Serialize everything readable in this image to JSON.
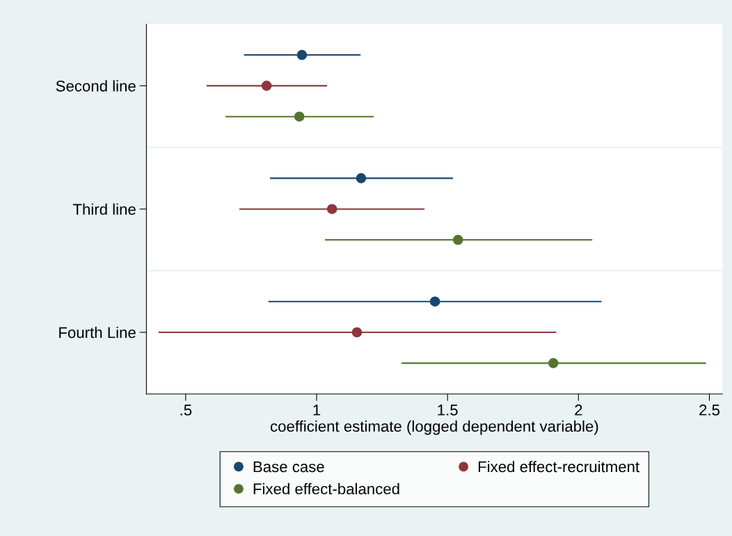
{
  "chart_data": {
    "type": "scatter",
    "orientation": "horizontal",
    "categories": [
      "Second line",
      "Third line",
      "Fourth Line"
    ],
    "xlabel": "coefficient estimate (logged dependent variable)",
    "xlim": [
      0.35,
      2.55
    ],
    "xticks": [
      {
        "value": 0.5,
        "label": ".5"
      },
      1,
      1.5,
      2,
      2.5
    ],
    "grid": false,
    "legend": "bottom",
    "marker": "circle",
    "series": [
      {
        "name": "Base case",
        "color": "#1a476f",
        "values": [
          0.944,
          1.17,
          1.452
        ],
        "errors": [
          [
            0.723,
            1.168
          ],
          [
            0.822,
            1.521
          ],
          [
            0.816,
            2.088
          ]
        ]
      },
      {
        "name": "Fixed effect-recruitment",
        "color": "#90353b",
        "values": [
          0.809,
          1.059,
          1.154
        ],
        "errors": [
          [
            0.58,
            1.04
          ],
          [
            0.705,
            1.412
          ],
          [
            0.396,
            1.915
          ]
        ]
      },
      {
        "name": "Fixed effect-balanced",
        "color": "#55752f",
        "values": [
          0.934,
          1.54,
          1.904
        ],
        "errors": [
          [
            0.652,
            1.218
          ],
          [
            1.032,
            2.053
          ],
          [
            1.324,
            2.487
          ]
        ]
      }
    ]
  }
}
